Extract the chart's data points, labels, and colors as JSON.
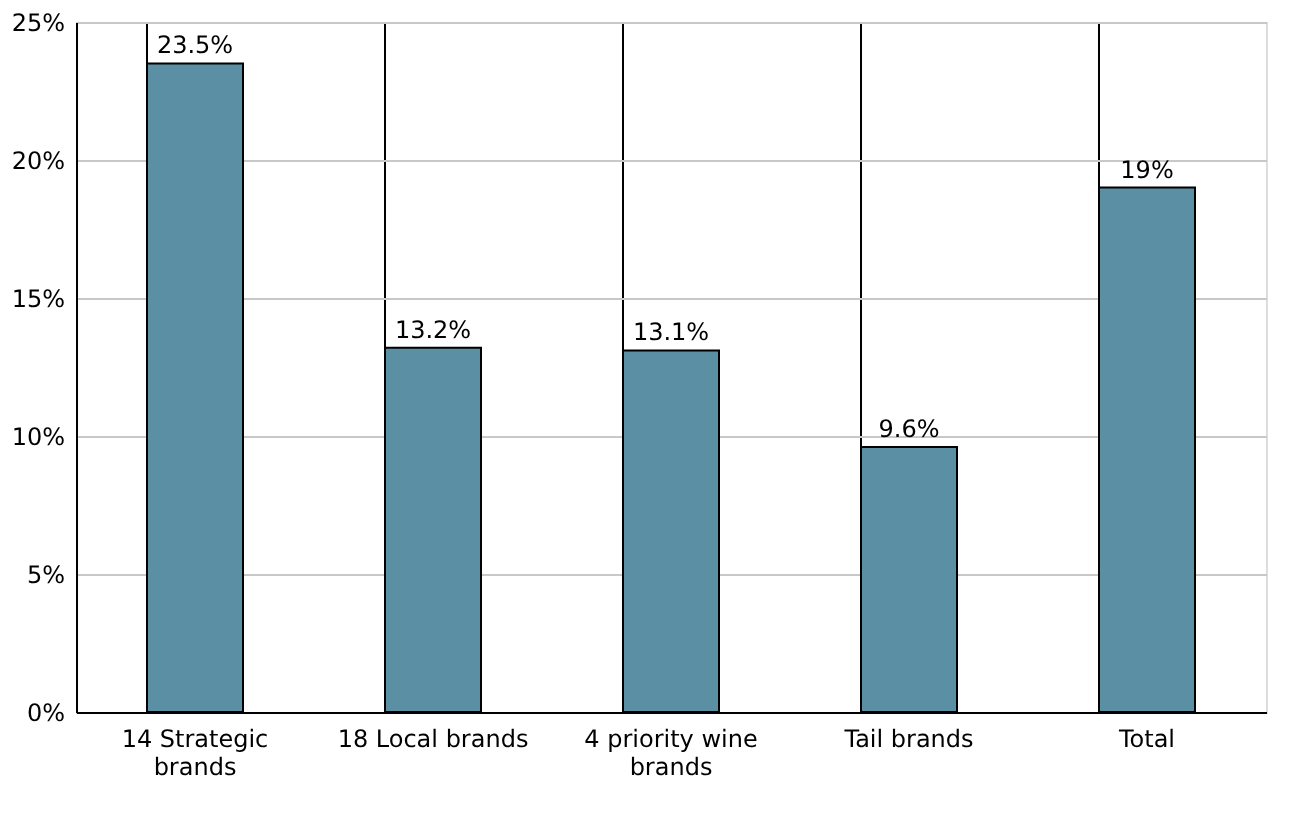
{
  "chart_data": {
    "type": "bar",
    "categories": [
      "14 Strategic brands",
      "18 Local brands",
      "4 priority wine brands",
      "Tail brands",
      "Total"
    ],
    "values": [
      23.5,
      13.2,
      13.1,
      9.6,
      19
    ],
    "value_labels": [
      "23.5%",
      "13.2%",
      "13.1%",
      "9.6%",
      "19%"
    ],
    "color": "#5b8fa3",
    "ylim": [
      0,
      25
    ],
    "yticks": [
      {
        "value": 0,
        "label": "0%"
      },
      {
        "value": 5,
        "label": "5%"
      },
      {
        "value": 10,
        "label": "10%"
      },
      {
        "value": 15,
        "label": "15%"
      },
      {
        "value": 20,
        "label": "20%"
      },
      {
        "value": 25,
        "label": "25%"
      }
    ],
    "grid": true
  }
}
